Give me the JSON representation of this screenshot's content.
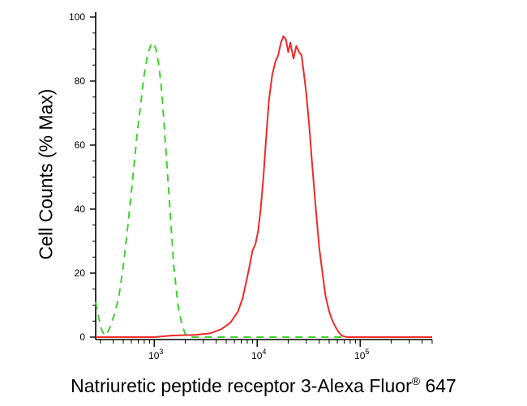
{
  "chart_data": {
    "type": "line",
    "xlabel": "Natriuretic peptide receptor 3-Alexa Fluor",
    "xlabel_sup": "®",
    "xlabel_suffix": "647",
    "ylabel": "Cell Counts (% Max)",
    "xscale": "log",
    "xlim": [
      270,
      500000
    ],
    "ylim": [
      0,
      100
    ],
    "yticks": [
      0,
      20,
      40,
      60,
      80,
      100
    ],
    "ytick_labels": [
      "0",
      "20",
      "40",
      "60",
      "80",
      "100"
    ],
    "xticks": [
      1000,
      10000,
      100000
    ],
    "xtick_labels": [
      {
        "base": "10",
        "exp": "3"
      },
      {
        "base": "10",
        "exp": "4"
      },
      {
        "base": "10",
        "exp": "5"
      }
    ],
    "grid": false,
    "legend": "none",
    "series": [
      {
        "color": "#3fd22c",
        "style": "dashed",
        "x": [
          270,
          290,
          310,
          330,
          360,
          400,
          450,
          500,
          560,
          620,
          680,
          740,
          800,
          860,
          920,
          980,
          1040,
          1120,
          1200,
          1300,
          1420,
          1550,
          1700,
          1850,
          2000,
          2200,
          2500,
          3000,
          5000,
          10000,
          30000,
          100000,
          500000
        ],
        "y": [
          11,
          6,
          2,
          0.5,
          2,
          6,
          12,
          22,
          36,
          50,
          63,
          73,
          82,
          88,
          91,
          92,
          90,
          84,
          74,
          58,
          40,
          22,
          10,
          4,
          1,
          0,
          0,
          0,
          0,
          0,
          0,
          0,
          0
        ]
      },
      {
        "color": "#ef2a2a",
        "style": "solid",
        "x": [
          270,
          1000,
          1500,
          2500,
          3500,
          4500,
          5500,
          6500,
          7200,
          7800,
          8400,
          9000,
          9600,
          10200,
          10800,
          11500,
          12200,
          13000,
          14000,
          15000,
          16000,
          17000,
          18000,
          19000,
          20000,
          21000,
          22500,
          24000,
          25500,
          27000,
          28500,
          30000,
          32000,
          34000,
          36000,
          38000,
          40000,
          43000,
          46000,
          50000,
          54000,
          58000,
          62000,
          66000,
          70000,
          75000,
          80000,
          90000,
          100000,
          150000,
          500000
        ],
        "y": [
          0,
          0,
          0.5,
          0.7,
          1.2,
          2.5,
          4.5,
          8,
          12,
          17,
          22,
          27,
          29,
          33,
          40,
          50,
          62,
          74,
          82,
          86,
          88,
          92,
          94,
          93,
          89,
          92,
          87,
          91,
          89,
          88,
          82,
          76,
          66,
          55,
          45,
          36,
          28,
          20,
          13,
          8,
          5,
          3,
          1.5,
          0.5,
          0.2,
          0,
          0,
          0,
          0,
          0,
          0
        ]
      }
    ]
  }
}
